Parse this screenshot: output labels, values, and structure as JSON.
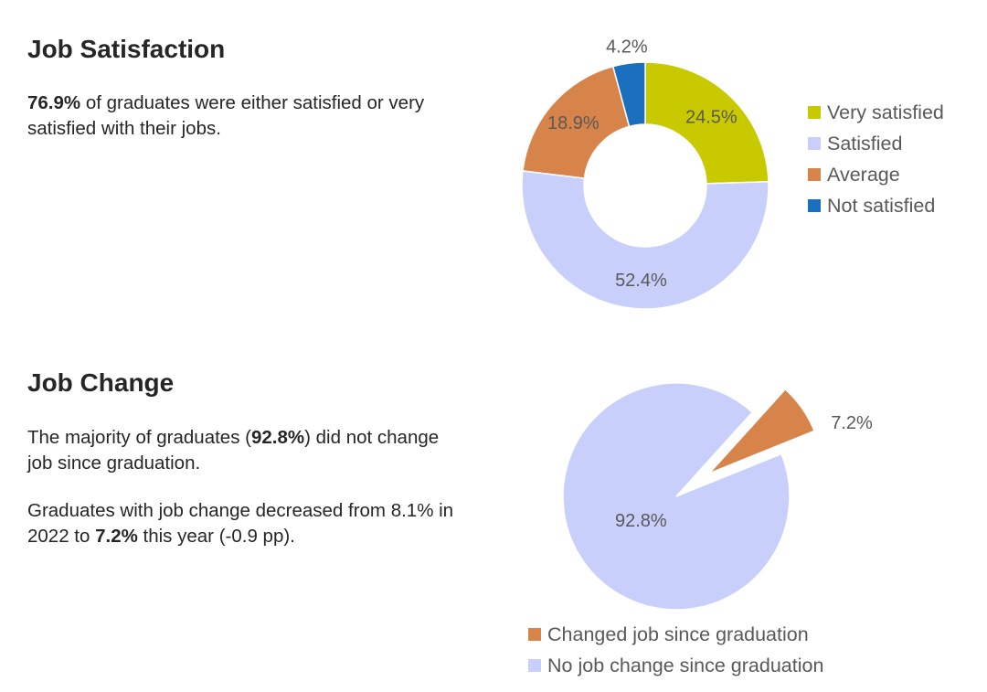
{
  "satisfaction": {
    "title": "Job Satisfaction",
    "summary": {
      "highlight": "76.9%",
      "text": " of graduates were either satisfied or very satisfied with their jobs."
    }
  },
  "job_change": {
    "title": "Job Change",
    "para1": {
      "before": "The majority of graduates (",
      "highlight": "92.8%",
      "after": ") did not change job since graduation."
    },
    "para2": {
      "before": "Graduates with job change decreased from 8.1% in 2022 to ",
      "highlight": "7.2%",
      "after": " this year (-0.9 pp)."
    }
  },
  "chart_data": [
    {
      "type": "pie",
      "variant": "doughnut",
      "title": "Job Satisfaction",
      "categories": [
        "Very satisfied",
        "Satisfied",
        "Average",
        "Not satisfied"
      ],
      "values": [
        24.5,
        52.4,
        18.9,
        4.2
      ],
      "labels": [
        "24.5%",
        "52.4%",
        "18.9%",
        "4.2%"
      ],
      "colors": [
        "#c9c900",
        "#c8cffa",
        "#d6844a",
        "#1a6fbe"
      ],
      "legend_position": "right"
    },
    {
      "type": "pie",
      "variant": "exploded",
      "title": "Job Change",
      "categories": [
        "Changed job since graduation",
        "No job change since graduation"
      ],
      "values": [
        7.2,
        92.8
      ],
      "labels": [
        "7.2%",
        "92.8%"
      ],
      "colors": [
        "#d6844a",
        "#c8cffa"
      ],
      "legend_position": "bottom"
    }
  ]
}
